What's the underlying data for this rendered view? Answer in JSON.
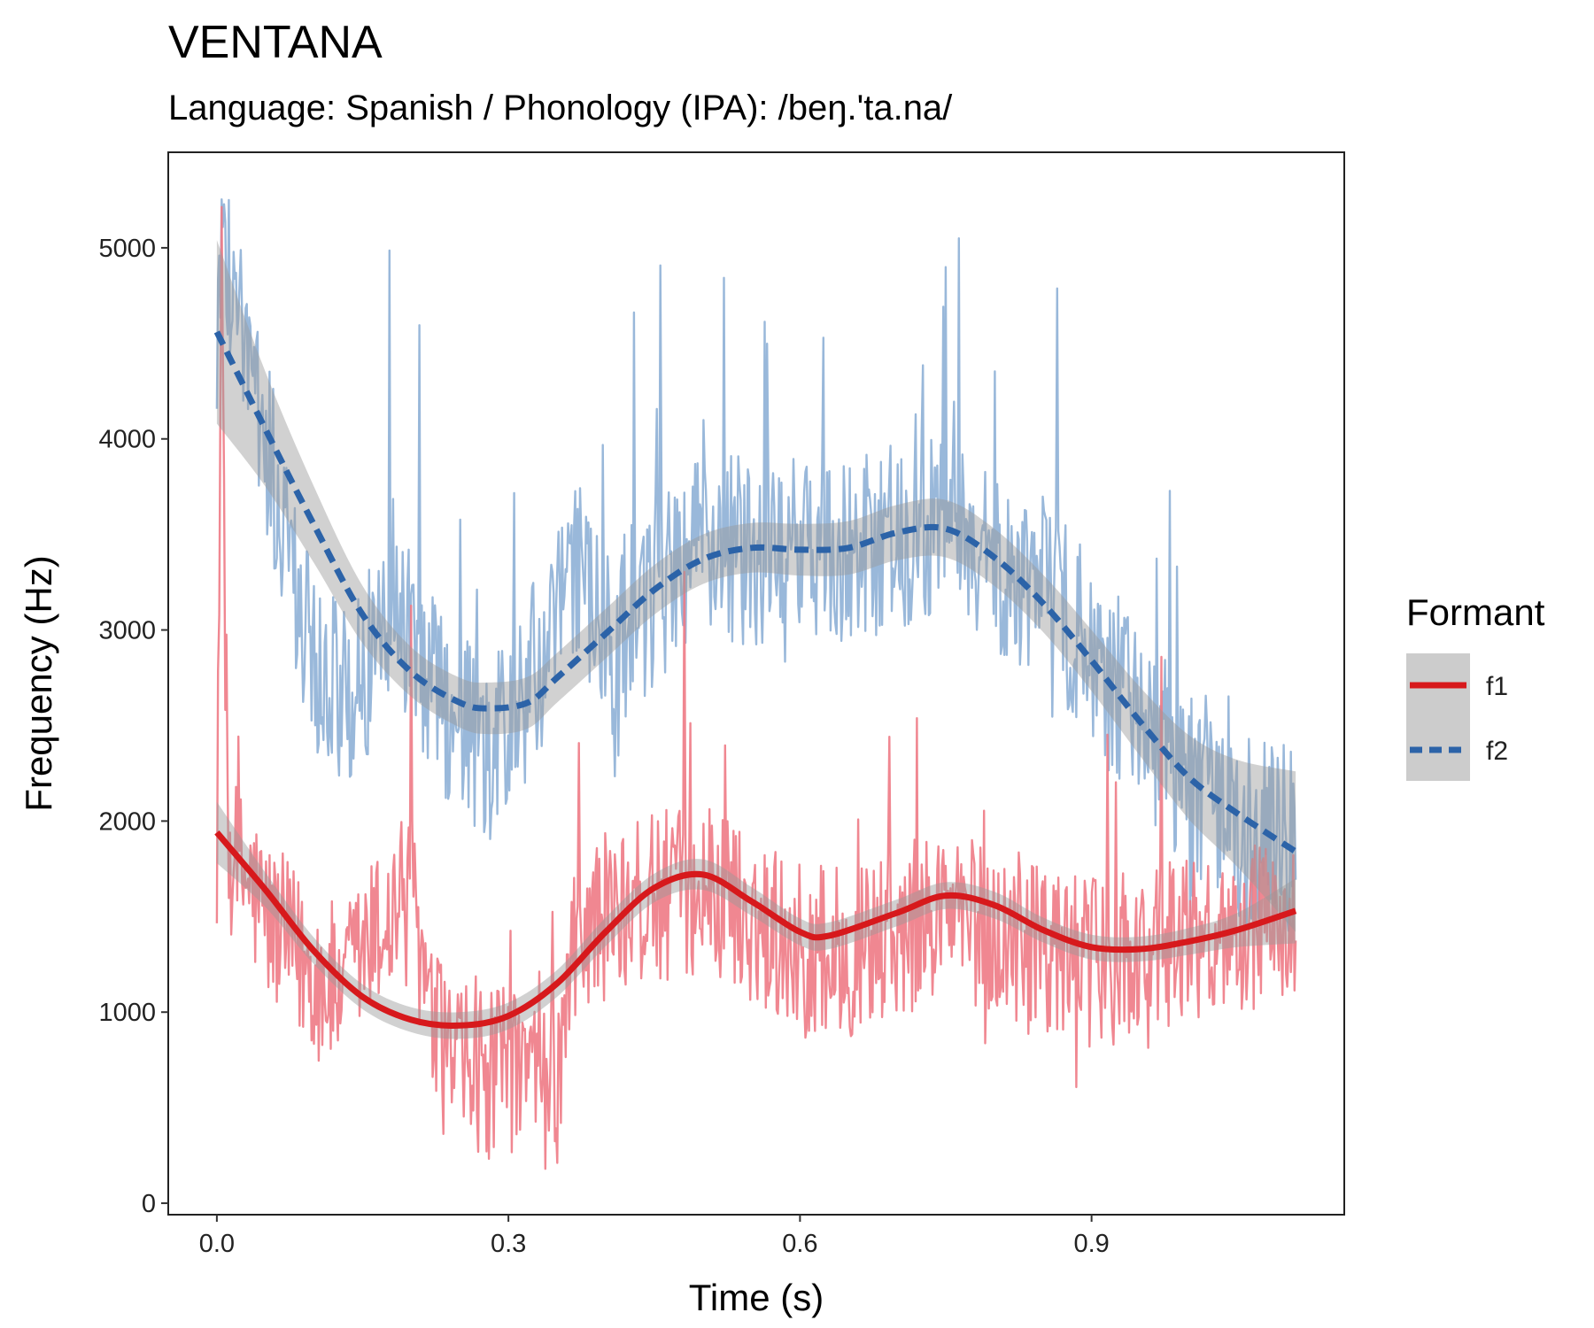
{
  "chart_data": {
    "type": "line",
    "title": "VENTANA",
    "subtitle": "Language: Spanish / Phonology (IPA): /beŋ.'ta.na/",
    "xlabel": "Time (s)",
    "ylabel": "Frequency (Hz)",
    "xlim": [
      -0.05,
      1.16
    ],
    "ylim": [
      -60,
      5500
    ],
    "x_ticks": [
      0.0,
      0.3,
      0.6,
      0.9
    ],
    "x_tick_labels": [
      "0.0",
      "0.3",
      "0.6",
      "0.9"
    ],
    "y_ticks": [
      0,
      1000,
      2000,
      3000,
      4000,
      5000
    ],
    "y_tick_labels": [
      "0",
      "1000",
      "2000",
      "3000",
      "4000",
      "5000"
    ],
    "grid": false,
    "legend": {
      "title": "Formant",
      "position": "right",
      "entries": [
        {
          "label": "f1",
          "color": "#d7191c",
          "linestyle": "solid"
        },
        {
          "label": "f2",
          "color": "#2c63a8",
          "linestyle": "dashed"
        }
      ]
    },
    "series": [
      {
        "name": "f1",
        "raw_color": "#ee7a85",
        "smooth_color": "#d7191c",
        "raw_approx": {
          "x": [
            0.0,
            0.005,
            0.01,
            0.03,
            0.05,
            0.08,
            0.1,
            0.13,
            0.15,
            0.18,
            0.2,
            0.22,
            0.25,
            0.28,
            0.3,
            0.32,
            0.35,
            0.37,
            0.4,
            0.45,
            0.5,
            0.55,
            0.6,
            0.65,
            0.7,
            0.75,
            0.8,
            0.85,
            0.9,
            0.95,
            1.0,
            1.05,
            1.1,
            1.11
          ],
          "y": [
            1900,
            5000,
            1800,
            1700,
            1500,
            1300,
            1200,
            1100,
            1300,
            1500,
            1700,
            900,
            700,
            650,
            700,
            650,
            600,
            1400,
            1500,
            1600,
            1650,
            1500,
            1350,
            1300,
            1400,
            1550,
            1400,
            1300,
            1250,
            1300,
            1400,
            1450,
            1450,
            1500
          ]
        },
        "smooth": {
          "x": [
            0.0,
            0.05,
            0.1,
            0.15,
            0.2,
            0.25,
            0.3,
            0.35,
            0.4,
            0.45,
            0.5,
            0.55,
            0.6,
            0.63,
            0.7,
            0.75,
            0.8,
            0.85,
            0.9,
            0.95,
            1.0,
            1.05,
            1.11
          ],
          "y": [
            1940,
            1640,
            1320,
            1080,
            960,
            930,
            980,
            1150,
            1420,
            1650,
            1720,
            1580,
            1420,
            1400,
            1520,
            1610,
            1560,
            1430,
            1340,
            1330,
            1370,
            1430,
            1530
          ],
          "ci_halfwidth": [
            160,
            90,
            70,
            65,
            65,
            70,
            70,
            70,
            75,
            75,
            80,
            75,
            70,
            70,
            70,
            70,
            70,
            65,
            65,
            65,
            70,
            90,
            170
          ]
        }
      },
      {
        "name": "f2",
        "raw_color": "#8eb0d6",
        "smooth_color": "#2c63a8",
        "raw_approx": {
          "x": [
            0.0,
            0.005,
            0.1,
            0.14,
            0.16,
            0.18,
            0.2,
            0.22,
            0.25,
            0.28,
            0.3,
            0.35,
            0.37,
            0.4,
            0.45,
            0.5,
            0.55,
            0.6,
            0.65,
            0.7,
            0.75,
            0.8,
            0.85,
            0.9,
            0.95,
            1.0,
            1.05,
            1.1,
            1.11
          ],
          "y": [
            4500,
            5000,
            2800,
            2600,
            2900,
            3200,
            3000,
            2700,
            2500,
            2300,
            2500,
            3000,
            3300,
            2900,
            3200,
            3500,
            3400,
            3400,
            3400,
            3500,
            3600,
            3400,
            3200,
            2900,
            2500,
            2200,
            2000,
            1900,
            1850
          ]
        },
        "smooth": {
          "x": [
            0.0,
            0.05,
            0.1,
            0.15,
            0.2,
            0.25,
            0.28,
            0.32,
            0.35,
            0.4,
            0.45,
            0.5,
            0.55,
            0.6,
            0.65,
            0.7,
            0.75,
            0.8,
            0.85,
            0.9,
            0.95,
            1.0,
            1.05,
            1.11
          ],
          "y": [
            4560,
            4050,
            3550,
            3080,
            2780,
            2620,
            2590,
            2620,
            2750,
            2980,
            3210,
            3370,
            3430,
            3420,
            3430,
            3510,
            3530,
            3380,
            3140,
            2840,
            2520,
            2230,
            2040,
            1840
          ],
          "ci_halfwidth": [
            480,
            300,
            200,
            150,
            130,
            130,
            135,
            135,
            130,
            130,
            130,
            130,
            130,
            135,
            140,
            145,
            150,
            150,
            150,
            160,
            180,
            220,
            280,
            420
          ]
        }
      }
    ]
  }
}
